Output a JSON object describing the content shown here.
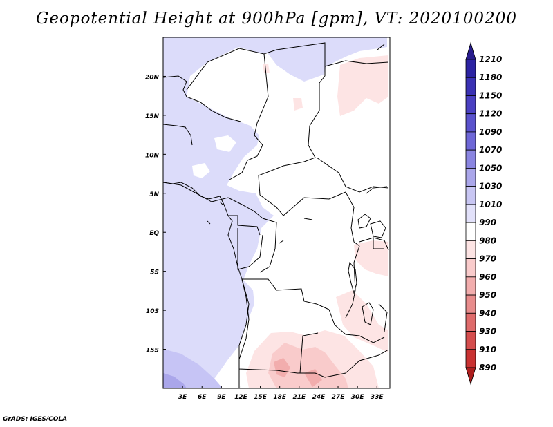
{
  "title": "Geopotential Height at 900hPa [gpm], VT: 2020100200",
  "credit": "GrADS: IGES/COLA",
  "map": {
    "lon_labels": [
      "3E",
      "6E",
      "9E",
      "12E",
      "15E",
      "18E",
      "21E",
      "24E",
      "27E",
      "30E",
      "33E"
    ],
    "lat_labels": [
      "20N",
      "15N",
      "10N",
      "5N",
      "EQ",
      "5S",
      "10S",
      "15S"
    ],
    "lon_values": [
      3,
      6,
      9,
      12,
      15,
      18,
      21,
      24,
      27,
      30,
      33
    ],
    "lat_values": [
      20,
      15,
      10,
      5,
      0,
      -5,
      -10,
      -15
    ],
    "lon_range": [
      0,
      35
    ],
    "lat_range": [
      -20,
      25
    ]
  },
  "colorbar": {
    "labels": [
      "1210",
      "1180",
      "1150",
      "1120",
      "1090",
      "1070",
      "1050",
      "1030",
      "1010",
      "990",
      "980",
      "970",
      "960",
      "950",
      "940",
      "930",
      "910",
      "890"
    ],
    "colors": [
      "#281c8c",
      "#2c23a3",
      "#3a31b4",
      "#4a40c2",
      "#5a52cd",
      "#6e67d7",
      "#8a85e1",
      "#aaa6ea",
      "#c8c6f3",
      "#e2e1fa",
      "#ffffff",
      "#fde4e4",
      "#f9cbcb",
      "#f2adad",
      "#e88c8c",
      "#df6b6b",
      "#d54d4d",
      "#c93232",
      "#ac1e1e"
    ]
  },
  "colors": {
    "land_border": "#000000",
    "background": "#ffffff"
  }
}
